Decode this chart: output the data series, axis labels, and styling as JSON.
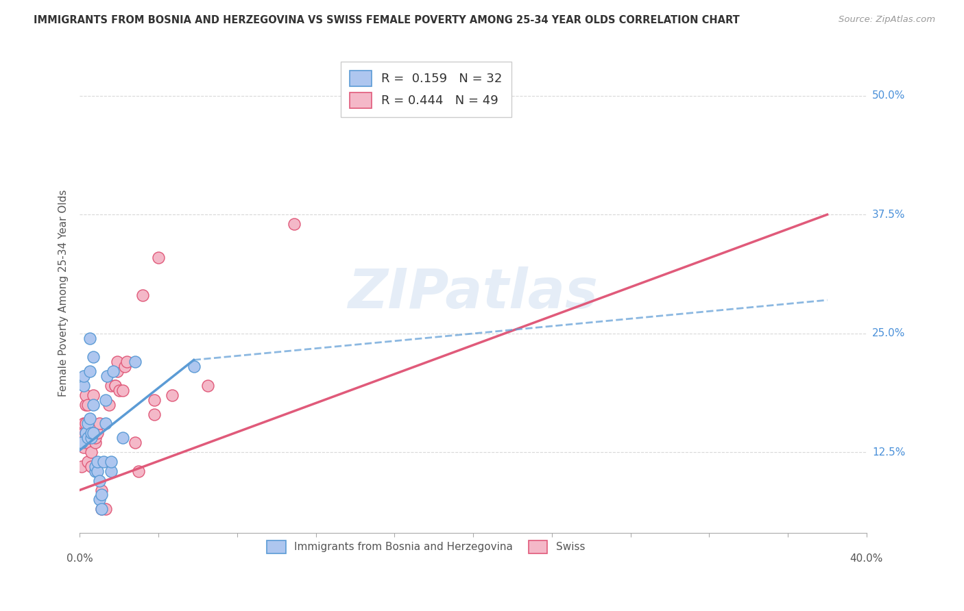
{
  "title": "IMMIGRANTS FROM BOSNIA AND HERZEGOVINA VS SWISS FEMALE POVERTY AMONG 25-34 YEAR OLDS CORRELATION CHART",
  "source": "Source: ZipAtlas.com",
  "ylabel": "Female Poverty Among 25-34 Year Olds",
  "ytick_labels": [
    "12.5%",
    "25.0%",
    "37.5%",
    "50.0%"
  ],
  "ytick_values": [
    0.125,
    0.25,
    0.375,
    0.5
  ],
  "legend_top": [
    {
      "label": "R =  0.159   N = 32",
      "facecolor": "#aec6ef",
      "edgecolor": "#5b9bd5"
    },
    {
      "label": "R = 0.444   N = 49",
      "facecolor": "#f4b8c8",
      "edgecolor": "#e05a7a"
    }
  ],
  "legend_bottom": [
    {
      "label": "Immigrants from Bosnia and Herzegovina",
      "facecolor": "#aec6ef",
      "edgecolor": "#5b9bd5"
    },
    {
      "label": "Swiss",
      "facecolor": "#f4b8c8",
      "edgecolor": "#e05a7a"
    }
  ],
  "blue_scatter": [
    [
      0.001,
      0.135
    ],
    [
      0.002,
      0.195
    ],
    [
      0.002,
      0.205
    ],
    [
      0.003,
      0.145
    ],
    [
      0.004,
      0.14
    ],
    [
      0.004,
      0.155
    ],
    [
      0.005,
      0.16
    ],
    [
      0.005,
      0.21
    ],
    [
      0.005,
      0.245
    ],
    [
      0.006,
      0.14
    ],
    [
      0.006,
      0.145
    ],
    [
      0.007,
      0.145
    ],
    [
      0.007,
      0.175
    ],
    [
      0.007,
      0.225
    ],
    [
      0.008,
      0.105
    ],
    [
      0.008,
      0.11
    ],
    [
      0.009,
      0.105
    ],
    [
      0.009,
      0.115
    ],
    [
      0.01,
      0.075
    ],
    [
      0.01,
      0.095
    ],
    [
      0.011,
      0.065
    ],
    [
      0.011,
      0.08
    ],
    [
      0.012,
      0.115
    ],
    [
      0.013,
      0.155
    ],
    [
      0.013,
      0.18
    ],
    [
      0.014,
      0.205
    ],
    [
      0.016,
      0.105
    ],
    [
      0.016,
      0.115
    ],
    [
      0.017,
      0.21
    ],
    [
      0.022,
      0.14
    ],
    [
      0.028,
      0.22
    ],
    [
      0.058,
      0.215
    ]
  ],
  "pink_scatter": [
    [
      0.001,
      0.11
    ],
    [
      0.001,
      0.135
    ],
    [
      0.001,
      0.14
    ],
    [
      0.001,
      0.145
    ],
    [
      0.002,
      0.13
    ],
    [
      0.002,
      0.14
    ],
    [
      0.002,
      0.145
    ],
    [
      0.002,
      0.155
    ],
    [
      0.003,
      0.135
    ],
    [
      0.003,
      0.145
    ],
    [
      0.003,
      0.155
    ],
    [
      0.003,
      0.175
    ],
    [
      0.003,
      0.185
    ],
    [
      0.004,
      0.115
    ],
    [
      0.004,
      0.14
    ],
    [
      0.004,
      0.175
    ],
    [
      0.005,
      0.145
    ],
    [
      0.005,
      0.145
    ],
    [
      0.006,
      0.11
    ],
    [
      0.006,
      0.125
    ],
    [
      0.007,
      0.145
    ],
    [
      0.007,
      0.185
    ],
    [
      0.008,
      0.135
    ],
    [
      0.008,
      0.14
    ],
    [
      0.009,
      0.145
    ],
    [
      0.01,
      0.155
    ],
    [
      0.011,
      0.065
    ],
    [
      0.011,
      0.085
    ],
    [
      0.013,
      0.065
    ],
    [
      0.015,
      0.175
    ],
    [
      0.016,
      0.195
    ],
    [
      0.018,
      0.195
    ],
    [
      0.018,
      0.195
    ],
    [
      0.019,
      0.21
    ],
    [
      0.019,
      0.22
    ],
    [
      0.02,
      0.19
    ],
    [
      0.022,
      0.19
    ],
    [
      0.023,
      0.215
    ],
    [
      0.024,
      0.22
    ],
    [
      0.028,
      0.135
    ],
    [
      0.03,
      0.105
    ],
    [
      0.032,
      0.29
    ],
    [
      0.038,
      0.165
    ],
    [
      0.038,
      0.18
    ],
    [
      0.04,
      0.33
    ],
    [
      0.047,
      0.185
    ],
    [
      0.065,
      0.195
    ],
    [
      0.109,
      0.365
    ],
    [
      0.17,
      0.5
    ]
  ],
  "blue_line_solid": [
    [
      0.0,
      0.127
    ],
    [
      0.058,
      0.222
    ]
  ],
  "blue_line_dashed": [
    [
      0.058,
      0.222
    ],
    [
      0.38,
      0.285
    ]
  ],
  "pink_line_solid": [
    [
      0.0,
      0.085
    ],
    [
      0.38,
      0.375
    ]
  ],
  "xlim": [
    0.0,
    0.4
  ],
  "ylim": [
    0.04,
    0.545
  ],
  "watermark": "ZIPatlas",
  "background_color": "#ffffff",
  "grid_color": "#d8d8d8",
  "blue_color": "#5b9bd5",
  "blue_scatter_color": "#aec6ef",
  "pink_color": "#e05a7a",
  "pink_scatter_color": "#f4b8c8",
  "right_label_color": "#4a90d9",
  "title_color": "#333333"
}
